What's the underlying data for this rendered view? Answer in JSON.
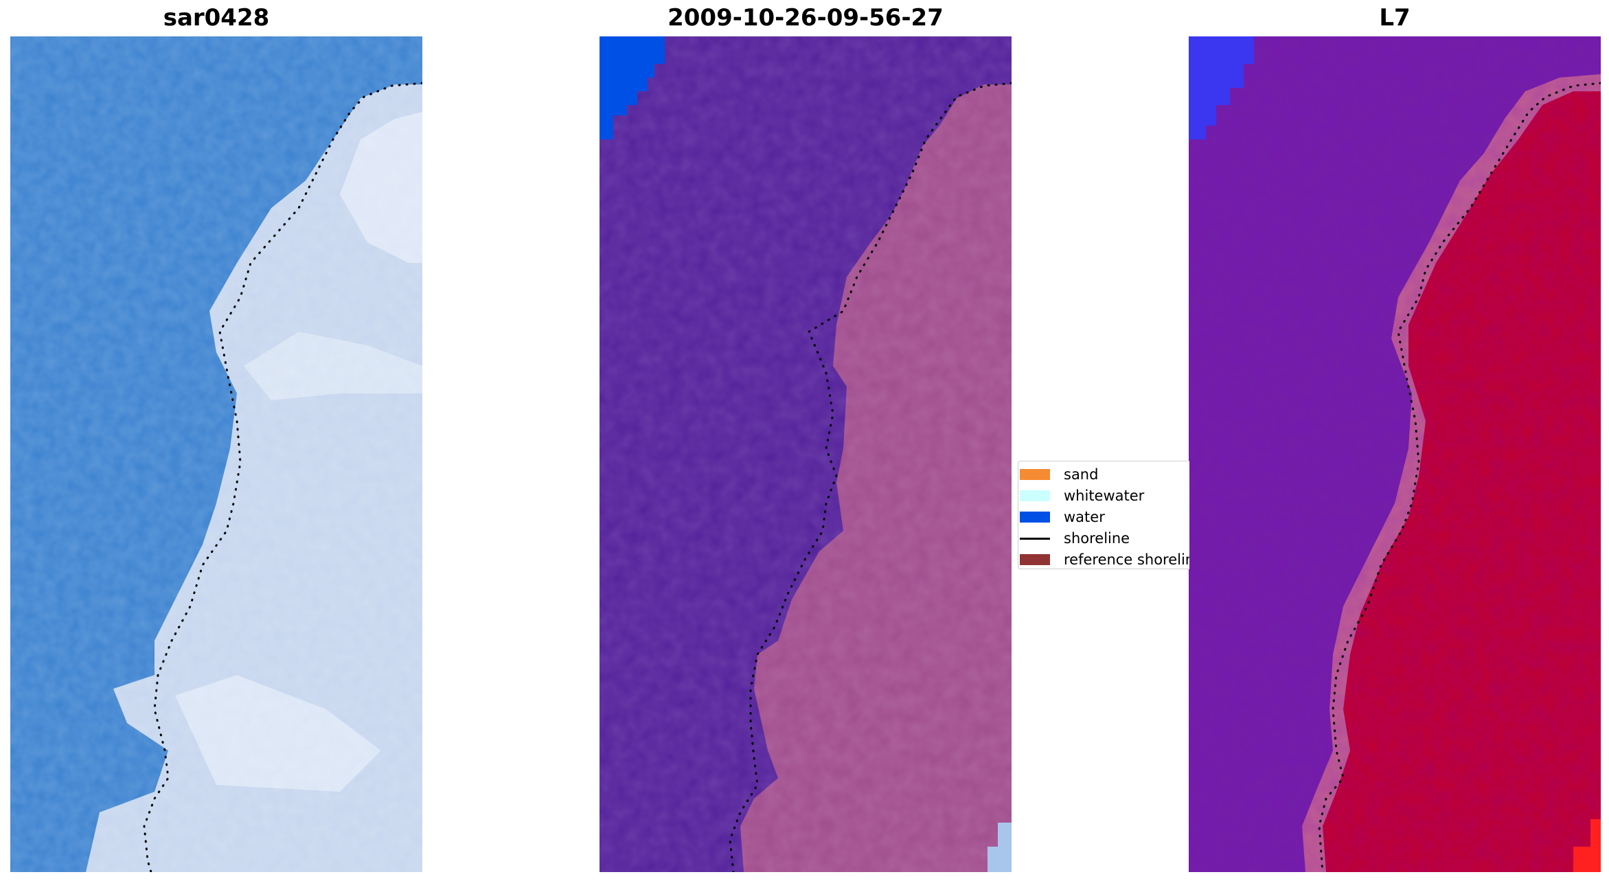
{
  "panels": [
    {
      "title": "sar0428"
    },
    {
      "title": "2009-10-26-09-56-27"
    },
    {
      "title": "L7"
    }
  ],
  "legend": {
    "items": [
      {
        "label": "sand",
        "type": "patch",
        "color": "#f58b33"
      },
      {
        "label": "whitewater",
        "type": "patch",
        "color": "#ccffff"
      },
      {
        "label": "water",
        "type": "patch",
        "color": "#0050e6"
      },
      {
        "label": "shoreline",
        "type": "line",
        "color": "#000000"
      },
      {
        "label": "reference shoreline",
        "type": "patch",
        "color": "#913333"
      }
    ]
  },
  "colors": {
    "rgb_water": "#3f86d4",
    "rgb_land": "#c8d8ee",
    "class_water": "#52209a",
    "class_land": "#a04d8c",
    "class_water_corner": "#0050e6",
    "index_water": "#7220a6",
    "index_land": "#c00030",
    "index_corner": "#3b36f0"
  }
}
